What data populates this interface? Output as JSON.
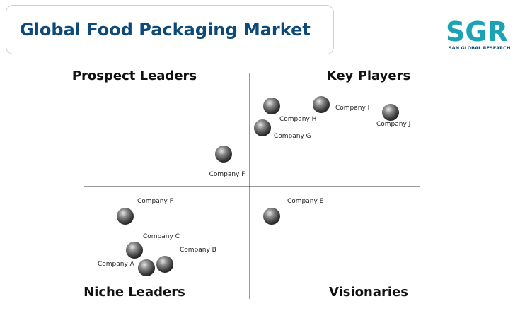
{
  "header": {
    "title": "Global Food Packaging Market"
  },
  "logo": {
    "name": "SGR",
    "tagline": "SAN GLOBAL RESEARCH"
  },
  "quadrants": {
    "top_left": "Prospect Leaders",
    "top_right": "Key Players",
    "bottom_left": "Niche Leaders",
    "bottom_right": "Visionaries"
  },
  "nodes": [
    {
      "label": "Company F"
    },
    {
      "label": "Company G"
    },
    {
      "label": "Company H"
    },
    {
      "label": "Company I"
    },
    {
      "label": "Company J"
    },
    {
      "label": "Company E"
    },
    {
      "label": "Company F"
    },
    {
      "label": "Company C"
    },
    {
      "label": "Company B"
    },
    {
      "label": "Company A"
    }
  ]
}
